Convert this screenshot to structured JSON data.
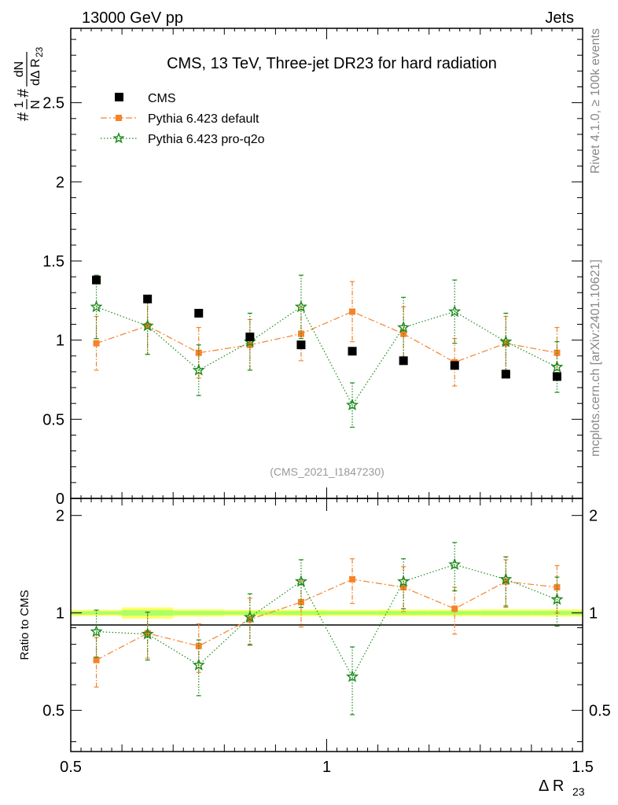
{
  "header": {
    "left_label": "13000 GeV pp",
    "right_label": "Jets",
    "side_label_top": "Rivet 4.1.0, ≥ 100k events",
    "side_label_bottom": "mcplots.cern.ch [arXiv:2401.10621]"
  },
  "chart_data": [
    {
      "type": "scatter",
      "panel": "main",
      "title": "CMS, 13 TeV, Three-jet DR23 for hard radiation",
      "analysis_label": "(CMS_2021_I1847230)",
      "ylabel_parts": {
        "hash1": "#",
        "one": "1",
        "N": "N",
        "hash2": "#",
        "dN": "dN",
        "dDeltaR": "dΔ R",
        "sub": "23"
      },
      "xlim": [
        0.5,
        1.5
      ],
      "ylim": [
        0,
        2.97
      ],
      "y_ticks": [
        {
          "value": 0,
          "label": "0"
        },
        {
          "value": 0.5,
          "label": "0.5"
        },
        {
          "value": 1,
          "label": "1"
        },
        {
          "value": 1.5,
          "label": "1.5"
        },
        {
          "value": 2,
          "label": "2"
        },
        {
          "value": 2.5,
          "label": "2.5"
        }
      ],
      "legend_position": "top-left",
      "series": [
        {
          "name": "CMS",
          "color": "#000000",
          "marker": "square",
          "line": "none",
          "x": [
            0.55,
            0.65,
            0.75,
            0.85,
            0.95,
            1.05,
            1.15,
            1.25,
            1.35,
            1.45
          ],
          "y": [
            1.38,
            1.26,
            1.17,
            1.02,
            0.97,
            0.93,
            0.87,
            0.84,
            0.785,
            0.77
          ],
          "err": [
            0.02,
            0.02,
            0.02,
            0.02,
            0.02,
            0.02,
            0.02,
            0.02,
            0.02,
            0.02
          ]
        },
        {
          "name": "Pythia 6.423 default",
          "color": "#f5832a",
          "marker": "square-small",
          "line": "dashdot",
          "x": [
            0.55,
            0.65,
            0.75,
            0.85,
            0.95,
            1.05,
            1.15,
            1.25,
            1.35,
            1.45
          ],
          "y": [
            0.98,
            1.09,
            0.92,
            0.97,
            1.04,
            1.18,
            1.04,
            0.86,
            0.98,
            0.92
          ],
          "err": [
            0.17,
            0.18,
            0.16,
            0.16,
            0.17,
            0.19,
            0.17,
            0.15,
            0.17,
            0.16
          ]
        },
        {
          "name": "Pythia 6.423 pro-q2o",
          "color": "#1a8a1a",
          "marker": "star",
          "line": "dotted",
          "x": [
            0.55,
            0.65,
            0.75,
            0.85,
            0.95,
            1.05,
            1.15,
            1.25,
            1.35,
            1.45
          ],
          "y": [
            1.21,
            1.09,
            0.81,
            0.99,
            1.21,
            0.59,
            1.08,
            1.18,
            0.99,
            0.83
          ],
          "err": [
            0.2,
            0.18,
            0.16,
            0.18,
            0.2,
            0.14,
            0.19,
            0.2,
            0.18,
            0.16
          ]
        }
      ]
    },
    {
      "type": "scatter",
      "panel": "ratio",
      "ylabel": "Ratio to CMS",
      "xlabel": "Δ R",
      "xlabel_sub": "23",
      "xlim": [
        0.5,
        1.5
      ],
      "ylim": [
        0.373,
        2.258
      ],
      "log_y": true,
      "x_ticks": [
        {
          "value": 0.5,
          "label": "0.5"
        },
        {
          "value": 1,
          "label": "1"
        },
        {
          "value": 1.5,
          "label": "1.5"
        }
      ],
      "y_ticks": [
        {
          "value": 0.5,
          "label": "0.5"
        },
        {
          "value": 1,
          "label": "1"
        },
        {
          "value": 2,
          "label": "2"
        }
      ],
      "band": {
        "x_edges": [
          0.5,
          0.6,
          0.7,
          0.8,
          0.9,
          1.0,
          1.1,
          1.2,
          1.3,
          1.4,
          1.5
        ],
        "inner": [
          0.012,
          0.02,
          0.014,
          0.012,
          0.013,
          0.012,
          0.013,
          0.013,
          0.014,
          0.014
        ],
        "outer": [
          0.022,
          0.04,
          0.026,
          0.022,
          0.024,
          0.022,
          0.024,
          0.024,
          0.026,
          0.026
        ]
      },
      "series": [
        {
          "name": "Pythia 6.423 default",
          "color": "#f5832a",
          "marker": "square-small",
          "line": "dashdot",
          "x": [
            0.55,
            0.65,
            0.75,
            0.85,
            0.95,
            1.05,
            1.15,
            1.25,
            1.35,
            1.45
          ],
          "y": [
            0.715,
            0.865,
            0.79,
            0.955,
            1.08,
            1.27,
            1.2,
            1.03,
            1.25,
            1.2
          ],
          "err": [
            0.125,
            0.14,
            0.135,
            0.155,
            0.175,
            0.2,
            0.19,
            0.17,
            0.21,
            0.2
          ]
        },
        {
          "name": "Pythia 6.423 pro-q2o",
          "color": "#1a8a1a",
          "marker": "star",
          "line": "dotted",
          "x": [
            0.55,
            0.65,
            0.75,
            0.85,
            0.95,
            1.05,
            1.15,
            1.25,
            1.35,
            1.45
          ],
          "y": [
            0.875,
            0.86,
            0.69,
            0.97,
            1.25,
            0.635,
            1.25,
            1.41,
            1.27,
            1.1
          ],
          "err": [
            0.145,
            0.145,
            0.135,
            0.175,
            0.21,
            0.15,
            0.22,
            0.24,
            0.22,
            0.19
          ]
        }
      ]
    }
  ]
}
